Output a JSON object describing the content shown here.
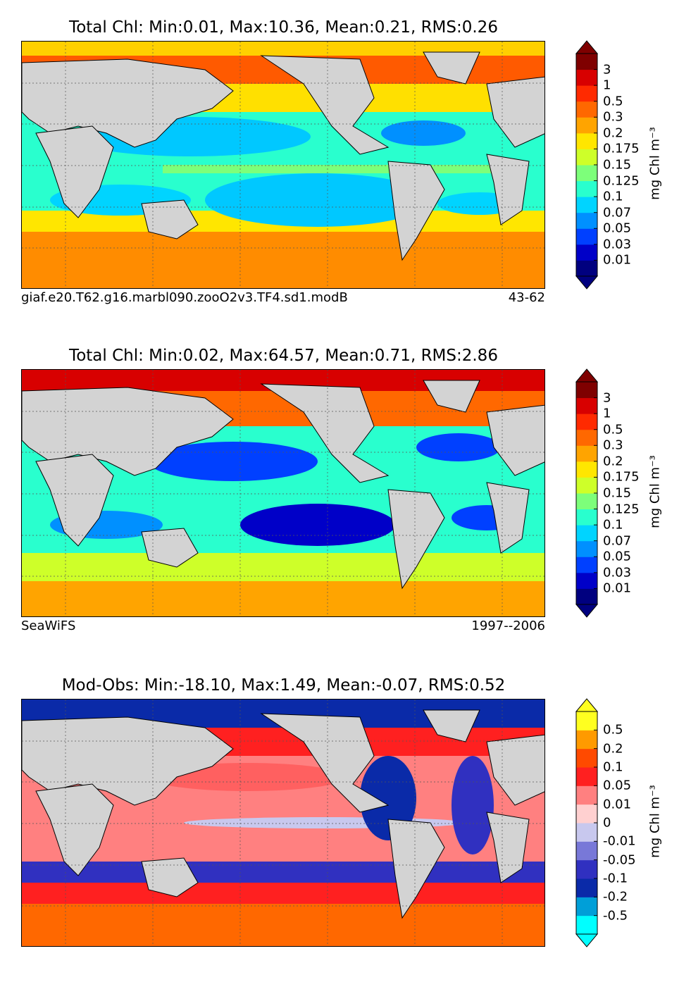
{
  "units_label": "mg Chl m⁻³",
  "colors": {
    "land": "#d3d3d3",
    "chl_levels": [
      "#00007f",
      "#0000c8",
      "#0040ff",
      "#0090ff",
      "#00d4ff",
      "#29ffce",
      "#7dff7a",
      "#ceff29",
      "#ffe600",
      "#ffa400",
      "#ff6800",
      "#ff2a00",
      "#d80000",
      "#7f0000"
    ],
    "diff_levels": [
      "#00ffff",
      "#009fd8",
      "#0a2aa8",
      "#3030c0",
      "#7878d8",
      "#c8c8ee",
      "#ffd0d0",
      "#ff8080",
      "#ff2020",
      "#ff4a00",
      "#ff9a00",
      "#ffff20"
    ]
  },
  "panels": [
    {
      "id": "model",
      "title": "Total Chl: Min:0.01, Max:10.36, Mean:0.21, RMS:0.26",
      "caption_left": "giaf.e20.T62.g16.marbl090.zooO2v3.TF4.sd1.modB",
      "caption_right": "43-62",
      "colorbar_ticks": [
        "0.01",
        "0.03",
        "0.05",
        "0.07",
        "0.1",
        "0.125",
        "0.15",
        "0.175",
        "0.2",
        "0.3",
        "0.5",
        "1",
        "3"
      ]
    },
    {
      "id": "obs",
      "title": "Total Chl: Min:0.02, Max:64.57, Mean:0.71, RMS:2.86",
      "caption_left": "SeaWiFS",
      "caption_right": "1997--2006",
      "colorbar_ticks": [
        "0.01",
        "0.03",
        "0.05",
        "0.07",
        "0.1",
        "0.125",
        "0.15",
        "0.175",
        "0.2",
        "0.3",
        "0.5",
        "1",
        "3"
      ]
    },
    {
      "id": "diff",
      "title": "Mod-Obs: Min:-18.10, Max:1.49, Mean:-0.07, RMS:0.52",
      "caption_left": "",
      "caption_right": "",
      "colorbar_ticks": [
        "-0.5",
        "-0.2",
        "-0.1",
        "-0.05",
        "-0.01",
        "0",
        "0.01",
        "0.05",
        "0.1",
        "0.2",
        "0.5"
      ]
    }
  ],
  "chart_data": [
    {
      "type": "heatmap",
      "title": "Total Chl: Min:0.01, Max:10.36, Mean:0.21, RMS:0.26",
      "colorbar_levels": [
        0.01,
        0.03,
        0.05,
        0.07,
        0.1,
        0.125,
        0.15,
        0.175,
        0.2,
        0.3,
        0.5,
        1,
        3
      ],
      "stats": {
        "min": 0.01,
        "max": 10.36,
        "mean": 0.21,
        "rms": 0.26
      },
      "colorbar_label": "mg Chl m⁻³",
      "caption_left": "giaf.e20.T62.g16.marbl090.zooO2v3.TF4.sd1.modB",
      "caption_right": "43-62"
    },
    {
      "type": "heatmap",
      "title": "Total Chl: Min:0.02, Max:64.57, Mean:0.71, RMS:2.86",
      "colorbar_levels": [
        0.01,
        0.03,
        0.05,
        0.07,
        0.1,
        0.125,
        0.15,
        0.175,
        0.2,
        0.3,
        0.5,
        1,
        3
      ],
      "stats": {
        "min": 0.02,
        "max": 64.57,
        "mean": 0.71,
        "rms": 2.86
      },
      "colorbar_label": "mg Chl m⁻³",
      "caption_left": "SeaWiFS",
      "caption_right": "1997--2006"
    },
    {
      "type": "heatmap",
      "title": "Mod-Obs: Min:-18.10, Max:1.49, Mean:-0.07, RMS:0.52",
      "colorbar_levels": [
        -0.5,
        -0.2,
        -0.1,
        -0.05,
        -0.01,
        0,
        0.01,
        0.05,
        0.1,
        0.2,
        0.5
      ],
      "stats": {
        "min": -18.1,
        "max": 1.49,
        "mean": -0.07,
        "rms": 0.52
      },
      "colorbar_label": "mg Chl m⁻³"
    }
  ]
}
